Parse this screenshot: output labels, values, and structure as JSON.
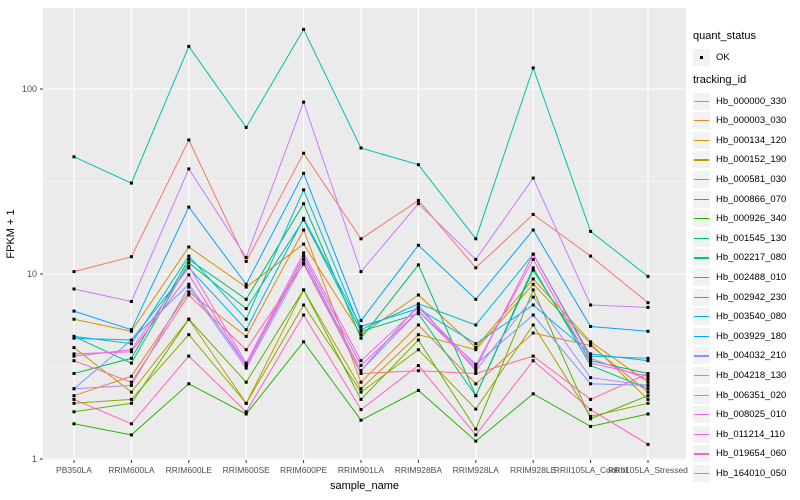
{
  "figure": {
    "y_axis_title": "FPKM + 1",
    "x_axis_title": "sample_name"
  },
  "legend": {
    "quant_status_title": "quant_status",
    "quant_status_ok_label": "OK",
    "tracking_id_title": "tracking_id"
  },
  "colors": {
    "panel_background": "#EBEBEB",
    "grid_line": "#FFFFFF",
    "tick_text": "#4D4D4D",
    "axis_title_text": "#000000",
    "point_marker": "#000000",
    "legend_key_background": "#F2F2F2"
  },
  "chart_data": {
    "type": "line",
    "title": "",
    "xlabel": "sample_name",
    "ylabel": "FPKM + 1",
    "y_scale": "log10",
    "ylim": [
      1,
      270
    ],
    "y_major_breaks": [
      1,
      10,
      100
    ],
    "y_minor_breaks": [
      3.162,
      31.62
    ],
    "y_tick_labels": [
      "1",
      "10",
      "100"
    ],
    "grid": true,
    "legend_position": "right",
    "point_marker": "small black square (quant_status OK)",
    "x": [
      "PB350LA",
      "RRIM600LA",
      "RRIM600LE",
      "RRIM600SE",
      "RRIM600PE",
      "RRIM901LA",
      "RRIM928BA",
      "RRIM928LA",
      "RRIM928LE",
      "RRII105LA_Control",
      "RRII105LA_Stressed"
    ],
    "series": [
      {
        "name": "Hb_000000_330",
        "color": "#F8766D",
        "values": [
          10.3,
          12.4,
          53,
          11.7,
          45,
          15.5,
          25,
          10.8,
          21,
          12.5,
          7.0
        ]
      },
      {
        "name": "Hb_000003_030",
        "color": "#E88526",
        "values": [
          2.2,
          2.8,
          8.0,
          4.6,
          17.3,
          2.6,
          5.3,
          2.55,
          4.8,
          4.1,
          2.3
        ]
      },
      {
        "name": "Hb_000134_120",
        "color": "#D39200",
        "values": [
          5.7,
          4.9,
          14.0,
          8.5,
          14.5,
          4.7,
          7.7,
          4.0,
          9.4,
          4.3,
          2.6
        ]
      },
      {
        "name": "Hb_000152_190",
        "color": "#B79F00",
        "values": [
          4.0,
          2.3,
          5.7,
          2.0,
          8.2,
          2.4,
          4.7,
          3.9,
          8.8,
          4.2,
          2.1
        ]
      },
      {
        "name": "Hb_000581_030",
        "color": "#93AA00",
        "values": [
          2.0,
          2.1,
          4.7,
          2.0,
          6.8,
          2.3,
          3.9,
          1.86,
          5.3,
          1.7,
          2.0
        ]
      },
      {
        "name": "Hb_000866_070",
        "color": "#5EB300",
        "values": [
          1.8,
          2.0,
          5.7,
          2.6,
          8.2,
          2.1,
          4.4,
          1.45,
          8.2,
          1.65,
          2.2
        ]
      },
      {
        "name": "Hb_000926_340",
        "color": "#24B700",
        "values": [
          1.55,
          1.35,
          2.55,
          1.75,
          4.3,
          1.62,
          2.35,
          1.25,
          2.25,
          1.5,
          1.75
        ]
      },
      {
        "name": "Hb_001545_130",
        "color": "#00BE67",
        "values": [
          2.9,
          3.5,
          12.0,
          7.3,
          24,
          4.5,
          11.2,
          2.2,
          10.5,
          3.4,
          2.9
        ]
      },
      {
        "name": "Hb_002217_080",
        "color": "#00C08B",
        "values": [
          4.6,
          3.3,
          11.5,
          6.5,
          19.6,
          4.9,
          6.1,
          2.2,
          10.8,
          3.2,
          2.4
        ]
      },
      {
        "name": "Hb_002488_010",
        "color": "#00C0AF",
        "values": [
          43,
          31,
          170,
          62,
          210,
          48,
          39,
          15.5,
          130,
          17,
          9.7
        ]
      },
      {
        "name": "Hb_002942_230",
        "color": "#00BDD0",
        "values": [
          4.6,
          4.2,
          12.5,
          5.7,
          28.5,
          5.0,
          6.9,
          5.3,
          12.8,
          3.6,
          3.5
        ]
      },
      {
        "name": "Hb_003540_080",
        "color": "#00B4EF",
        "values": [
          4.5,
          4.4,
          10.8,
          5.0,
          20,
          5.2,
          6.5,
          4.2,
          6.8,
          3.7,
          3.4
        ]
      },
      {
        "name": "Hb_003929_180",
        "color": "#00A5FF",
        "values": [
          6.3,
          5.0,
          23,
          8.8,
          35,
          5.6,
          14.3,
          7.3,
          17.3,
          5.2,
          4.9
        ]
      },
      {
        "name": "Hb_004032_210",
        "color": "#7997FF",
        "values": [
          2.4,
          4.4,
          8.8,
          3.2,
          12.0,
          3.0,
          6.3,
          3.25,
          6.0,
          2.55,
          2.5
        ]
      },
      {
        "name": "Hb_004218_130",
        "color": "#AC88FF",
        "values": [
          2.4,
          2.5,
          8.5,
          3.1,
          11.5,
          3.0,
          6.8,
          3.0,
          7.5,
          2.75,
          2.5
        ]
      },
      {
        "name": "Hb_006351_020",
        "color": "#CF78FF",
        "values": [
          8.3,
          7.1,
          37,
          12.3,
          85,
          10.3,
          24,
          12.0,
          33,
          6.8,
          6.6
        ]
      },
      {
        "name": "Hb_008025_010",
        "color": "#E968F1",
        "values": [
          3.6,
          3.9,
          11.0,
          3.3,
          13.0,
          3.4,
          6.6,
          3.2,
          12.0,
          3.3,
          2.8
        ]
      },
      {
        "name": "Hb_011214_110",
        "color": "#FA62DB",
        "values": [
          3.7,
          3.8,
          9.9,
          3.2,
          12.5,
          3.2,
          6.3,
          3.1,
          12.8,
          3.5,
          2.7
        ]
      },
      {
        "name": "Hb_019654_060",
        "color": "#FF61C3",
        "values": [
          2.1,
          1.55,
          3.6,
          1.8,
          6.0,
          1.85,
          3.2,
          1.35,
          3.4,
          1.85,
          1.2
        ]
      },
      {
        "name": "Hb_164010_050",
        "color": "#FF6C90",
        "values": [
          3.4,
          2.6,
          7.7,
          3.9,
          11.3,
          2.9,
          3.0,
          2.9,
          3.6,
          2.1,
          2.9
        ]
      }
    ]
  }
}
